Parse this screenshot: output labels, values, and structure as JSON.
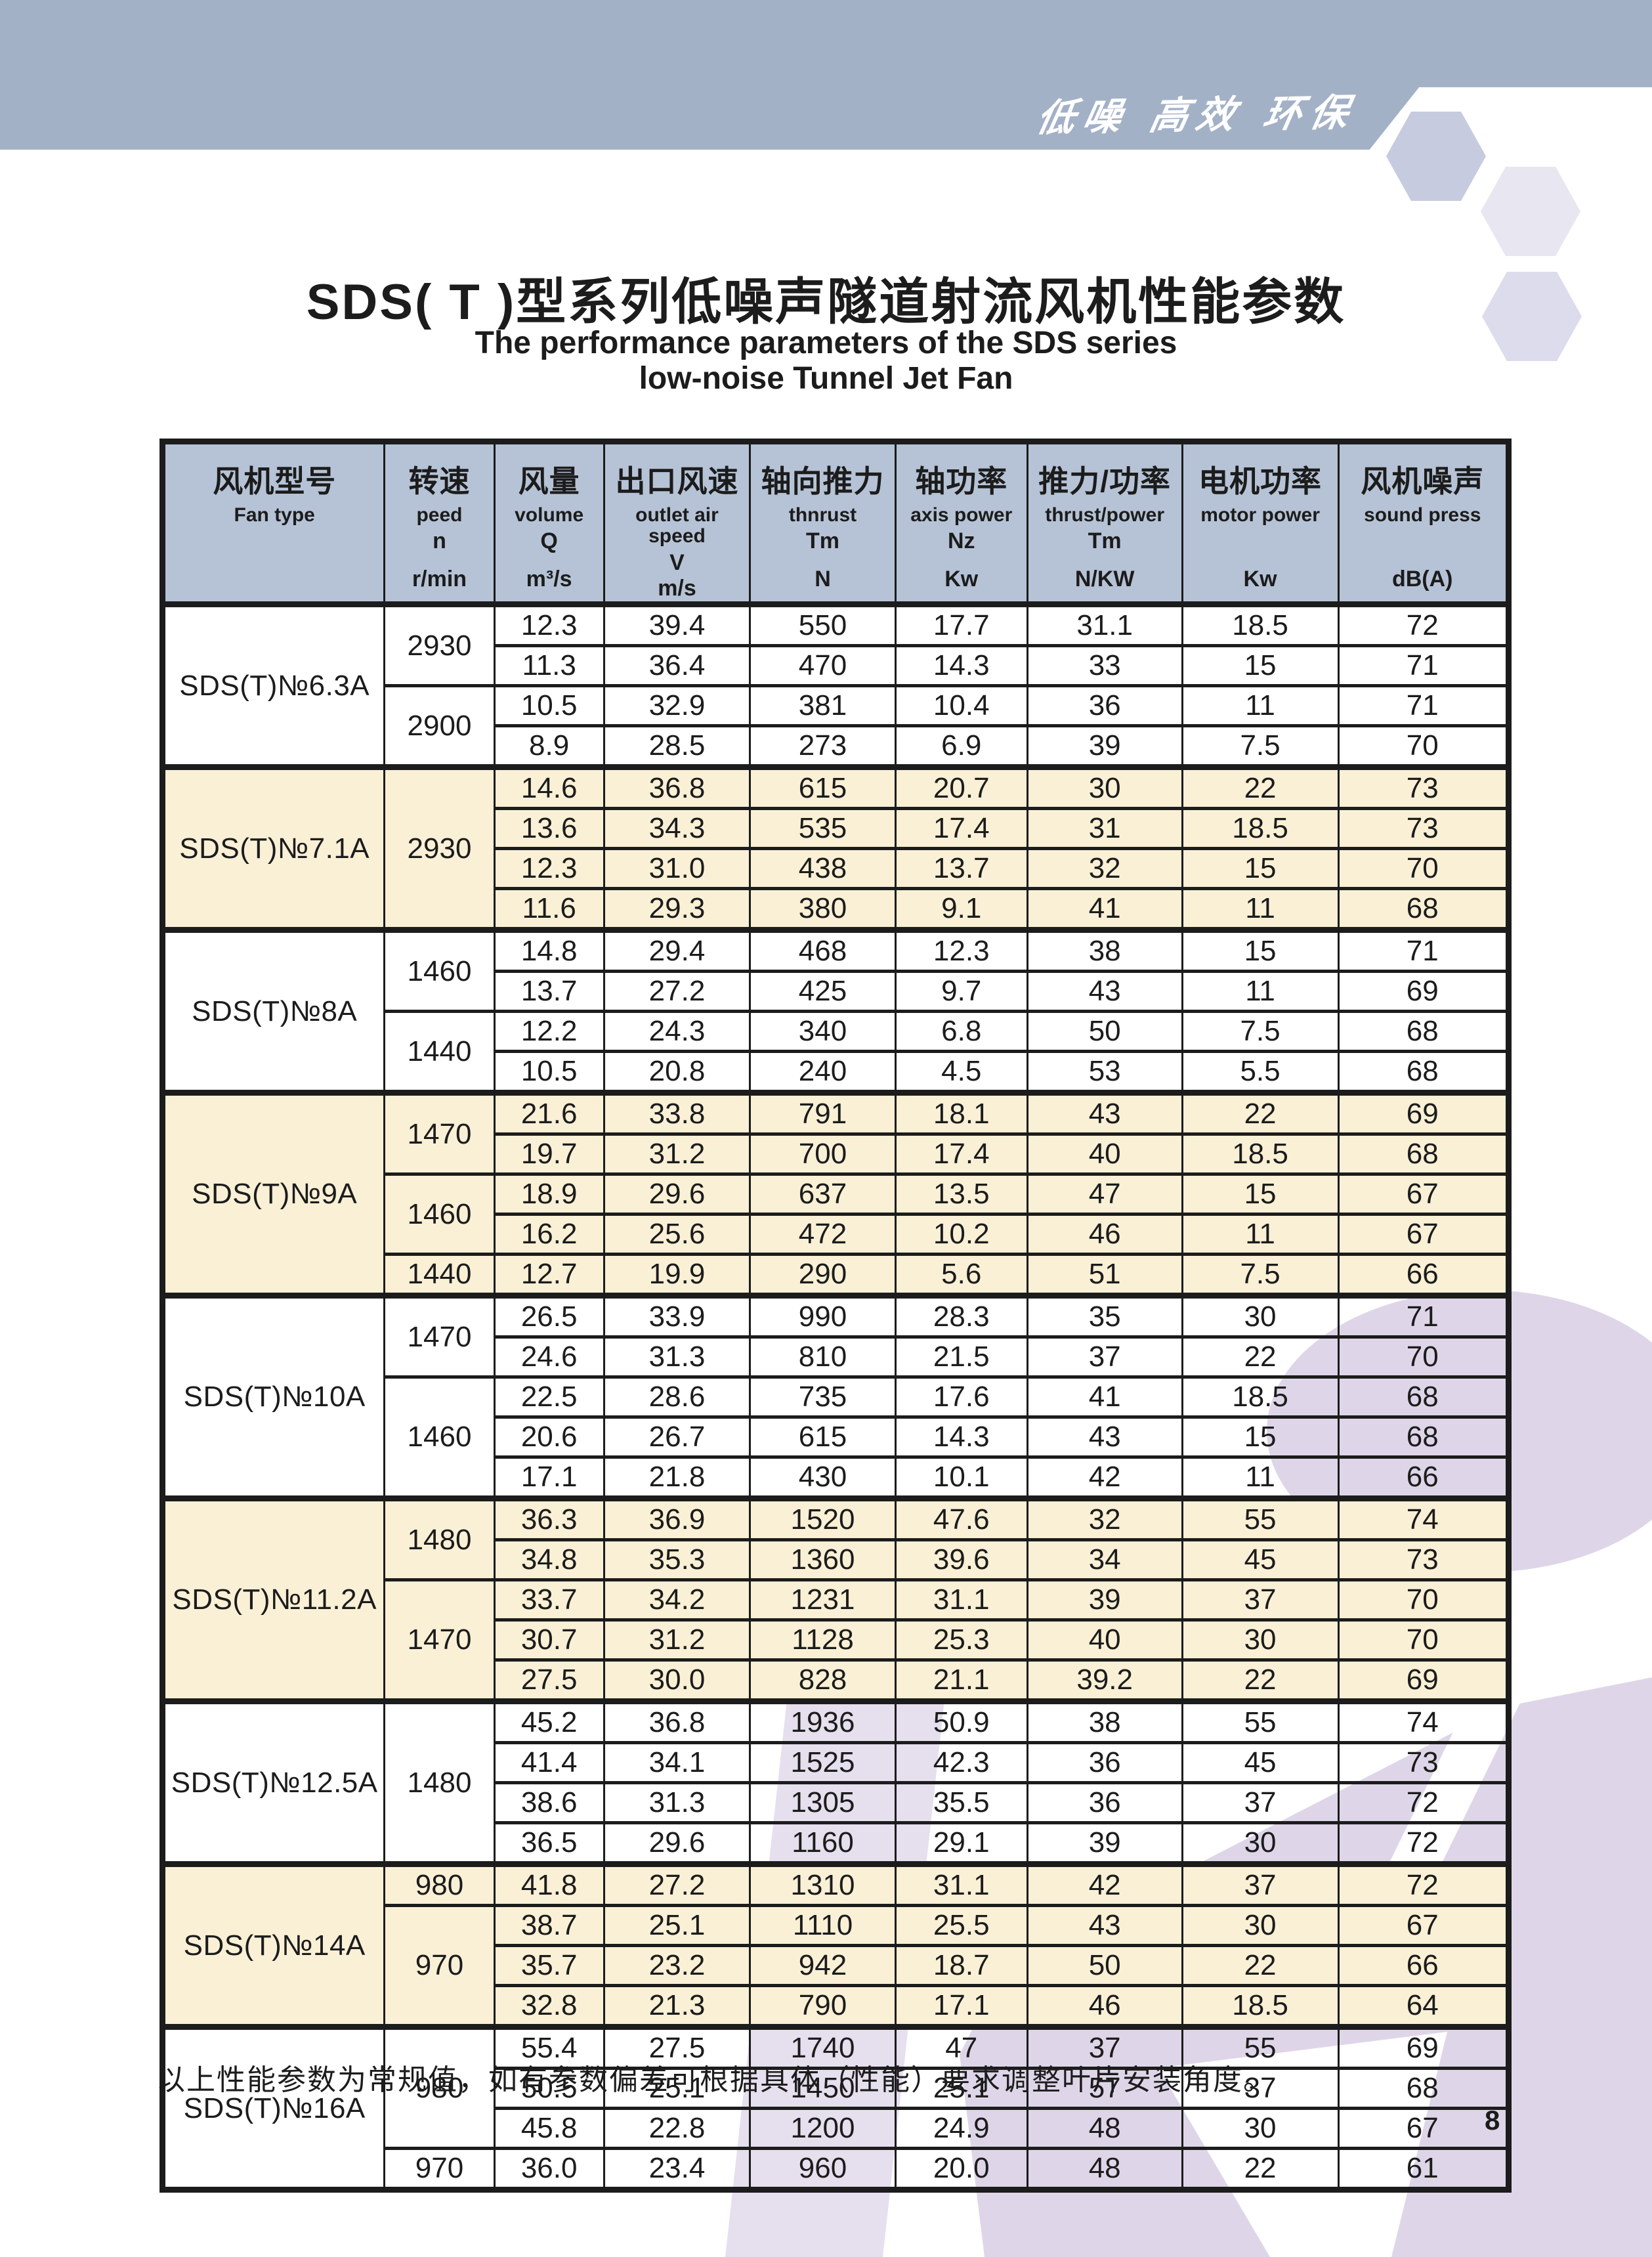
{
  "banner": {
    "slogan": "低噪 高效 环保"
  },
  "title": {
    "zh": "SDS( T )型系列低噪声隧道射流风机性能参数",
    "en_line1": "The performance parameters of the SDS series",
    "en_line2": "low-noise Tunnel Jet Fan"
  },
  "table": {
    "columns": [
      {
        "zh": "风机型号",
        "en": "Fan type",
        "sym": "",
        "unit": ""
      },
      {
        "zh": "转速",
        "en": "peed",
        "sym": "n",
        "unit": "r/min"
      },
      {
        "zh": "风量",
        "en": "volume",
        "sym": "Q",
        "unit": "m³/s"
      },
      {
        "zh": "出口风速",
        "en": "outlet air speed",
        "sym": "V",
        "unit": "m/s"
      },
      {
        "zh": "轴向推力",
        "en": "thnrust",
        "sym": "Tm",
        "unit": "N"
      },
      {
        "zh": "轴功率",
        "en": "axis power",
        "sym": "Nz",
        "unit": "Kw"
      },
      {
        "zh": "推力/功率",
        "en": "thrust/power",
        "sym": "Tm",
        "unit": "N/KW"
      },
      {
        "zh": "电机功率",
        "en": "motor power",
        "sym": "",
        "unit": "Kw"
      },
      {
        "zh": "风机噪声",
        "en": "sound press",
        "sym": "",
        "unit": "dB(A)"
      }
    ],
    "sections": [
      {
        "model": "SDS(T)№6.3A",
        "tint": "white",
        "speeds": [
          {
            "value": "2930",
            "rows": 2
          },
          {
            "value": "2900",
            "rows": 2
          }
        ],
        "rows": [
          [
            "12.3",
            "39.4",
            "550",
            "17.7",
            "31.1",
            "18.5",
            "72"
          ],
          [
            "11.3",
            "36.4",
            "470",
            "14.3",
            "33",
            "15",
            "71"
          ],
          [
            "10.5",
            "32.9",
            "381",
            "10.4",
            "36",
            "11",
            "71"
          ],
          [
            "8.9",
            "28.5",
            "273",
            "6.9",
            "39",
            "7.5",
            "70"
          ]
        ]
      },
      {
        "model": "SDS(T)№7.1A",
        "tint": "cream",
        "speeds": [
          {
            "value": "2930",
            "rows": 4
          }
        ],
        "rows": [
          [
            "14.6",
            "36.8",
            "615",
            "20.7",
            "30",
            "22",
            "73"
          ],
          [
            "13.6",
            "34.3",
            "535",
            "17.4",
            "31",
            "18.5",
            "73"
          ],
          [
            "12.3",
            "31.0",
            "438",
            "13.7",
            "32",
            "15",
            "70"
          ],
          [
            "11.6",
            "29.3",
            "380",
            "9.1",
            "41",
            "11",
            "68"
          ]
        ]
      },
      {
        "model": "SDS(T)№8A",
        "tint": "white",
        "speeds": [
          {
            "value": "1460",
            "rows": 2
          },
          {
            "value": "1440",
            "rows": 2
          }
        ],
        "rows": [
          [
            "14.8",
            "29.4",
            "468",
            "12.3",
            "38",
            "15",
            "71"
          ],
          [
            "13.7",
            "27.2",
            "425",
            "9.7",
            "43",
            "11",
            "69"
          ],
          [
            "12.2",
            "24.3",
            "340",
            "6.8",
            "50",
            "7.5",
            "68"
          ],
          [
            "10.5",
            "20.8",
            "240",
            "4.5",
            "53",
            "5.5",
            "68"
          ]
        ]
      },
      {
        "model": "SDS(T)№9A",
        "tint": "cream",
        "speeds": [
          {
            "value": "1470",
            "rows": 2
          },
          {
            "value": "1460",
            "rows": 2
          },
          {
            "value": "1440",
            "rows": 1
          }
        ],
        "rows": [
          [
            "21.6",
            "33.8",
            "791",
            "18.1",
            "43",
            "22",
            "69"
          ],
          [
            "19.7",
            "31.2",
            "700",
            "17.4",
            "40",
            "18.5",
            "68"
          ],
          [
            "18.9",
            "29.6",
            "637",
            "13.5",
            "47",
            "15",
            "67"
          ],
          [
            "16.2",
            "25.6",
            "472",
            "10.2",
            "46",
            "11",
            "67"
          ],
          [
            "12.7",
            "19.9",
            "290",
            "5.6",
            "51",
            "7.5",
            "66"
          ]
        ]
      },
      {
        "model": "SDS(T)№10A",
        "tint": "white",
        "speeds": [
          {
            "value": "1470",
            "rows": 2
          },
          {
            "value": "1460",
            "rows": 3
          }
        ],
        "rows": [
          [
            "26.5",
            "33.9",
            "990",
            "28.3",
            "35",
            "30",
            "71"
          ],
          [
            "24.6",
            "31.3",
            "810",
            "21.5",
            "37",
            "22",
            "70"
          ],
          [
            "22.5",
            "28.6",
            "735",
            "17.6",
            "41",
            "18.5",
            "68"
          ],
          [
            "20.6",
            "26.7",
            "615",
            "14.3",
            "43",
            "15",
            "68"
          ],
          [
            "17.1",
            "21.8",
            "430",
            "10.1",
            "42",
            "11",
            "66"
          ]
        ]
      },
      {
        "model": "SDS(T)№11.2A",
        "tint": "cream",
        "speeds": [
          {
            "value": "1480",
            "rows": 2
          },
          {
            "value": "1470",
            "rows": 3
          }
        ],
        "rows": [
          [
            "36.3",
            "36.9",
            "1520",
            "47.6",
            "32",
            "55",
            "74"
          ],
          [
            "34.8",
            "35.3",
            "1360",
            "39.6",
            "34",
            "45",
            "73"
          ],
          [
            "33.7",
            "34.2",
            "1231",
            "31.1",
            "39",
            "37",
            "70"
          ],
          [
            "30.7",
            "31.2",
            "1128",
            "25.3",
            "40",
            "30",
            "70"
          ],
          [
            "27.5",
            "30.0",
            "828",
            "21.1",
            "39.2",
            "22",
            "69"
          ]
        ]
      },
      {
        "model": "SDS(T)№12.5A",
        "tint": "white",
        "speeds": [
          {
            "value": "1480",
            "rows": 4
          }
        ],
        "rows": [
          [
            "45.2",
            "36.8",
            "1936",
            "50.9",
            "38",
            "55",
            "74"
          ],
          [
            "41.4",
            "34.1",
            "1525",
            "42.3",
            "36",
            "45",
            "73"
          ],
          [
            "38.6",
            "31.3",
            "1305",
            "35.5",
            "36",
            "37",
            "72"
          ],
          [
            "36.5",
            "29.6",
            "1160",
            "29.1",
            "39",
            "30",
            "72"
          ]
        ]
      },
      {
        "model": "SDS(T)№14A",
        "tint": "cream",
        "speeds": [
          {
            "value": "980",
            "rows": 1
          },
          {
            "value": "970",
            "rows": 3
          }
        ],
        "rows": [
          [
            "41.8",
            "27.2",
            "1310",
            "31.1",
            "42",
            "37",
            "72"
          ],
          [
            "38.7",
            "25.1",
            "1110",
            "25.5",
            "43",
            "30",
            "67"
          ],
          [
            "35.7",
            "23.2",
            "942",
            "18.7",
            "50",
            "22",
            "66"
          ],
          [
            "32.8",
            "21.3",
            "790",
            "17.1",
            "46",
            "18.5",
            "64"
          ]
        ]
      },
      {
        "model": "SDS(T)№16A",
        "tint": "white",
        "speeds": [
          {
            "value": "980",
            "rows": 3
          },
          {
            "value": "970",
            "rows": 1
          }
        ],
        "rows": [
          [
            "55.4",
            "27.5",
            "1740",
            "47",
            "37",
            "55",
            "69"
          ],
          [
            "50.5",
            "25.1",
            "1450",
            "25.1",
            "57",
            "37",
            "68"
          ],
          [
            "45.8",
            "22.8",
            "1200",
            "24.9",
            "48",
            "30",
            "67"
          ],
          [
            "36.0",
            "23.4",
            "960",
            "20.0",
            "48",
            "22",
            "61"
          ]
        ]
      }
    ]
  },
  "footer": {
    "note": "以上性能参数为常规值，如有参数偏差可根据具体（性能）要求调整叶片安装角度。",
    "page_number": "8"
  },
  "colors": {
    "band": "#a3b1c7",
    "table_header_bg": "#b6c3d6",
    "cream_row_bg": "#f9f0d6",
    "watermark_lavender": "#ded6e8",
    "watermark_light": "#e6dfee",
    "border_black": "#1c1c1c"
  }
}
